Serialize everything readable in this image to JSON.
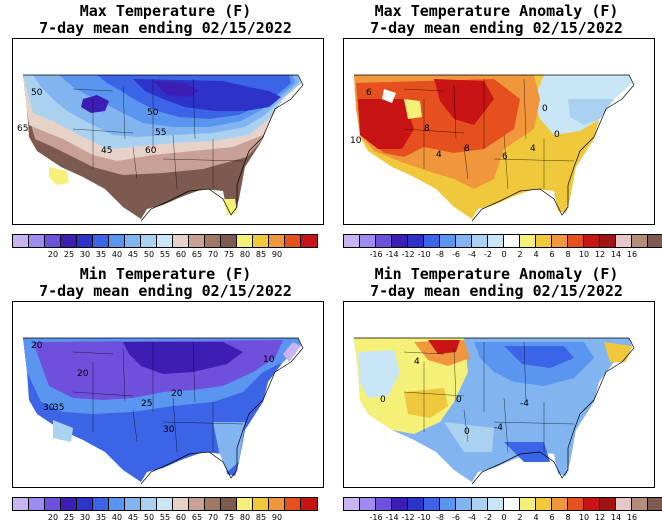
{
  "panels": [
    {
      "title_line1": "Max Temperature (F)",
      "title_line2": "7-day mean ending 02/15/2022",
      "colorbar": {
        "colors": [
          "#c8b4f0",
          "#a08cf0",
          "#6e50dc",
          "#3c1eb4",
          "#2d32c8",
          "#3c64e6",
          "#5a96f0",
          "#82b4f0",
          "#aad2f0",
          "#c8e6f5",
          "#e6d2c8",
          "#c8a096",
          "#a07864",
          "#7d5a50",
          "#f5f078",
          "#f0c83c",
          "#f0963c",
          "#e6501e",
          "#c81414"
        ],
        "tick_labels": [
          "20",
          "25",
          "30",
          "35",
          "40",
          "45",
          "50",
          "55",
          "60",
          "65",
          "70",
          "75",
          "80",
          "85",
          "90"
        ]
      },
      "contour_labels": [
        "50",
        "50",
        "55",
        "65",
        "45",
        "60"
      ]
    },
    {
      "title_line1": "Max Temperature Anomaly (F)",
      "title_line2": "7-day mean ending 02/15/2022",
      "colorbar": {
        "colors": [
          "#c8b4f0",
          "#a08cf0",
          "#6e50dc",
          "#3c1eb4",
          "#2d32c8",
          "#3c64e6",
          "#5a96f0",
          "#82b4f0",
          "#aad2f0",
          "#c8e6f5",
          "#ffffff",
          "#f5f078",
          "#f0c83c",
          "#f0963c",
          "#e6501e",
          "#c81414",
          "#a01414",
          "#e6c8c8",
          "#b48c78",
          "#7d5a50"
        ],
        "tick_labels": [
          "-16",
          "-14",
          "-12",
          "-10",
          "-8",
          "-6",
          "-4",
          "-2",
          "0",
          "2",
          "4",
          "6",
          "8",
          "10",
          "12",
          "14",
          "16"
        ]
      },
      "contour_labels": [
        "6",
        "8",
        "10",
        "8",
        "6",
        "4",
        "4",
        "0",
        "0"
      ]
    },
    {
      "title_line1": "Min Temperature (F)",
      "title_line2": "7-day mean ending 02/15/2022",
      "colorbar": {
        "colors": [
          "#c8b4f0",
          "#a08cf0",
          "#6e50dc",
          "#3c1eb4",
          "#2d32c8",
          "#3c64e6",
          "#5a96f0",
          "#82b4f0",
          "#aad2f0",
          "#c8e6f5",
          "#e6d2c8",
          "#c8a096",
          "#a07864",
          "#7d5a50",
          "#f5f078",
          "#f0c83c",
          "#f0963c",
          "#e6501e",
          "#c81414"
        ],
        "tick_labels": [
          "20",
          "25",
          "30",
          "35",
          "40",
          "45",
          "50",
          "55",
          "60",
          "65",
          "70",
          "75",
          "80",
          "85",
          "90"
        ]
      },
      "contour_labels": [
        "20",
        "20",
        "30",
        "35",
        "25",
        "20",
        "30",
        "10"
      ]
    },
    {
      "title_line1": "Min Temperature Anomaly (F)",
      "title_line2": "7-day mean ending 02/15/2022",
      "colorbar": {
        "colors": [
          "#c8b4f0",
          "#a08cf0",
          "#6e50dc",
          "#3c1eb4",
          "#2d32c8",
          "#3c64e6",
          "#5a96f0",
          "#82b4f0",
          "#aad2f0",
          "#c8e6f5",
          "#ffffff",
          "#f5f078",
          "#f0c83c",
          "#f0963c",
          "#e6501e",
          "#c81414",
          "#a01414",
          "#e6c8c8",
          "#b48c78",
          "#7d5a50"
        ],
        "tick_labels": [
          "-16",
          "-14",
          "-12",
          "-10",
          "-8",
          "-6",
          "-4",
          "-2",
          "0",
          "2",
          "4",
          "6",
          "8",
          "10",
          "12",
          "14",
          "16"
        ]
      },
      "contour_labels": [
        "4",
        "0",
        "-4",
        "-4",
        "0",
        "0"
      ]
    }
  ]
}
